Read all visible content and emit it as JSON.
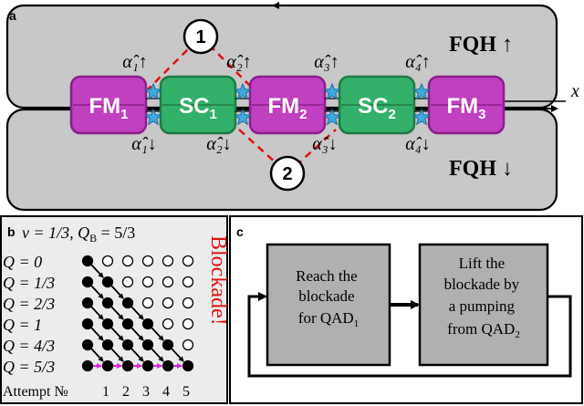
{
  "panel_a": {
    "label": "a",
    "upper_edge": "FQH ↑",
    "lower_edge": "FQH ↓",
    "axis_label": "x",
    "segments": [
      {
        "main": "FM",
        "sub": "1",
        "kind": "fm"
      },
      {
        "main": "SC",
        "sub": "1",
        "kind": "sc"
      },
      {
        "main": "FM",
        "sub": "2",
        "kind": "fm"
      },
      {
        "main": "SC",
        "sub": "2",
        "kind": "sc"
      },
      {
        "main": "FM",
        "sub": "3",
        "kind": "fm"
      }
    ],
    "modes_up": [
      "α̂₁↑",
      "α̂₂↑",
      "α̂₃↑",
      "α̂₄↑"
    ],
    "modes_down": [
      "α̂₁↓",
      "α̂₂↓",
      "α̂₃↓",
      "α̂₄↓"
    ],
    "dots": [
      "1",
      "2"
    ],
    "colors": {
      "fm": "#c040c0",
      "fm_edge": "#8a1f8a",
      "sc": "#33b06a",
      "sc_edge": "#1f7a44",
      "edge_fill": "#c8c8c8",
      "star": "#3fa9e0",
      "loop": "#e01010"
    }
  },
  "panel_b": {
    "label": "b",
    "header": "ν = 1/3, Q",
    "header_sub": "B",
    "header_tail": " = 5/3",
    "rows": [
      "Q = 0",
      "Q = 1/3",
      "Q = 2/3",
      "Q = 1",
      "Q = 4/3",
      "Q = 5/3"
    ],
    "attempt_label": "Attempt №",
    "attempts": [
      "1",
      "2",
      "3",
      "4",
      "5"
    ],
    "blockade": "Blockade!",
    "colors": {
      "background": "#ececec",
      "blockade": "#e01010",
      "arrow_bottom": "#e020e0"
    }
  },
  "panel_c": {
    "label": "c",
    "box1": [
      "Reach the",
      "blockade",
      "for QAD"
    ],
    "box1_sub": "1",
    "box2": [
      "Lift the",
      "blockade by",
      "a pumping",
      "from QAD"
    ],
    "box2_sub": "2",
    "colors": {
      "box_fill": "#b0b0b0"
    }
  }
}
